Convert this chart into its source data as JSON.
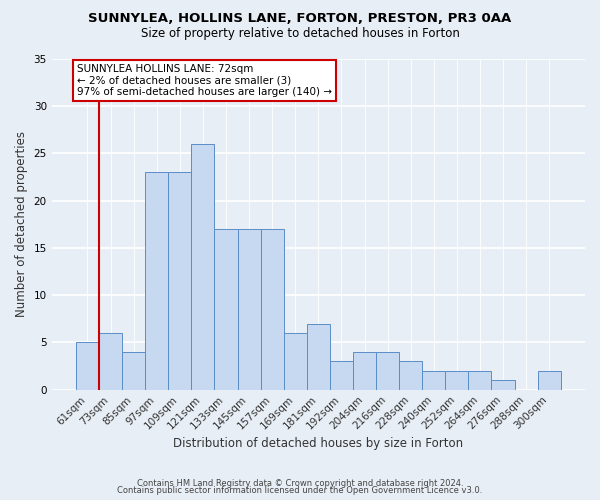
{
  "title1": "SUNNYLEA, HOLLINS LANE, FORTON, PRESTON, PR3 0AA",
  "title2": "Size of property relative to detached houses in Forton",
  "xlabel": "Distribution of detached houses by size in Forton",
  "ylabel": "Number of detached properties",
  "categories": [
    "61sqm",
    "73sqm",
    "85sqm",
    "97sqm",
    "109sqm",
    "121sqm",
    "133sqm",
    "145sqm",
    "157sqm",
    "169sqm",
    "181sqm",
    "192sqm",
    "204sqm",
    "216sqm",
    "228sqm",
    "240sqm",
    "252sqm",
    "264sqm",
    "276sqm",
    "288sqm",
    "300sqm"
  ],
  "values": [
    5,
    6,
    4,
    23,
    23,
    26,
    17,
    17,
    17,
    6,
    7,
    3,
    4,
    4,
    3,
    2,
    2,
    2,
    1,
    0,
    2
  ],
  "bar_color": "#c6d9f1",
  "bar_edge_color": "#5b8dc8",
  "annotation_text": "SUNNYLEA HOLLINS LANE: 72sqm\n← 2% of detached houses are smaller (3)\n97% of semi-detached houses are larger (140) →",
  "annotation_box_color": "white",
  "annotation_box_edge_color": "#cc0000",
  "red_line_color": "#cc0000",
  "ylim": [
    0,
    35
  ],
  "yticks": [
    0,
    5,
    10,
    15,
    20,
    25,
    30,
    35
  ],
  "footer_line1": "Contains HM Land Registry data © Crown copyright and database right 2024.",
  "footer_line2": "Contains public sector information licensed under the Open Government Licence v3.0.",
  "background_color": "#e8eef5",
  "grid_color": "#c8d4e3"
}
